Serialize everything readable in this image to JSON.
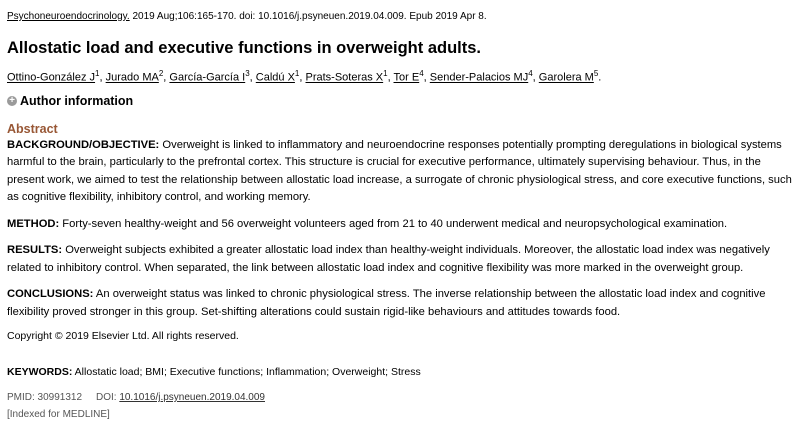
{
  "citation": {
    "journal": "Psychoneuroendocrinology.",
    "details": " 2019 Aug;106:165-170. doi: 10.1016/j.psyneuen.2019.04.009. Epub 2019 Apr 8."
  },
  "title": "Allostatic load and executive functions in overweight adults.",
  "authors": [
    {
      "name": "Ottino-González J",
      "aff": "1"
    },
    {
      "name": "Jurado MA",
      "aff": "2"
    },
    {
      "name": "García-García I",
      "aff": "3"
    },
    {
      "name": "Caldú X",
      "aff": "1"
    },
    {
      "name": "Prats-Soteras X",
      "aff": "1"
    },
    {
      "name": "Tor E",
      "aff": "4"
    },
    {
      "name": "Sender-Palacios MJ",
      "aff": "4"
    },
    {
      "name": "Garolera M",
      "aff": "5"
    }
  ],
  "author_info_label": "Author information",
  "author_info_icon": "plus-circle-icon",
  "abstract": {
    "heading": "Abstract",
    "sections": [
      {
        "label": "BACKGROUND/OBJECTIVE:",
        "text": " Overweight is linked to inflammatory and neuroendocrine responses potentially prompting deregulations in biological systems harmful to the brain, particularly to the prefrontal cortex. This structure is crucial for executive performance, ultimately supervising behaviour. Thus, in the present work, we aimed to test the relationship between allostatic load increase, a surrogate of chronic physiological stress, and core executive functions, such as cognitive flexibility, inhibitory control, and working memory."
      },
      {
        "label": "METHOD:",
        "text": " Forty-seven healthy-weight and 56 overweight volunteers aged from 21 to 40 underwent medical and neuropsychological examination."
      },
      {
        "label": "RESULTS:",
        "text": " Overweight subjects exhibited a greater allostatic load index than healthy-weight individuals. Moreover, the allostatic load index was negatively related to inhibitory control. When separated, the link between allostatic load index and cognitive flexibility was more marked in the overweight group."
      },
      {
        "label": "CONCLUSIONS:",
        "text": " An overweight status was linked to chronic physiological stress. The inverse relationship between the allostatic load index and cognitive flexibility proved stronger in this group. Set-shifting alterations could sustain rigid-like behaviours and attitudes towards food."
      }
    ],
    "copyright": "Copyright © 2019 Elsevier Ltd. All rights reserved."
  },
  "keywords": {
    "label": "KEYWORDS:",
    "text": " Allostatic load; BMI; Executive functions; Inflammation; Overweight; Stress"
  },
  "pmid": "PMID: 30991312",
  "doi_label": "DOI: ",
  "doi": "10.1016/j.psyneuen.2019.04.009",
  "indexed": "[Indexed for MEDLINE]",
  "colors": {
    "abstract_heading": "#985735"
  }
}
